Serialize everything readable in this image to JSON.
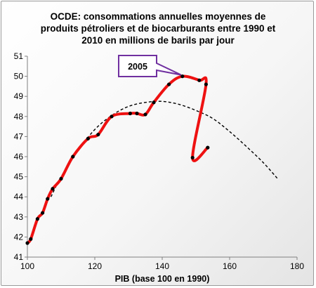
{
  "chart_data": {
    "type": "scatter",
    "title": "OCDE: consommations annuelles moyennes de produits pétroliers et de biocarburants entre 1990 et 2010 en millions de barils par jour",
    "title_lines": [
      "OCDE: consommations annuelles moyennes de",
      "produits pétroliers et de biocarburants entre 1990 et",
      "2010 en millions de barils par jour"
    ],
    "xlabel": "PIB (base 100 en 1990)",
    "ylabel": "",
    "xlim": [
      100,
      180
    ],
    "ylim": [
      41,
      51
    ],
    "x_ticks": [
      100,
      120,
      140,
      160,
      180
    ],
    "y_ticks": [
      41,
      42,
      43,
      44,
      45,
      46,
      47,
      48,
      49,
      50,
      51
    ],
    "grid": false,
    "series": [
      {
        "style": "red line with black markers",
        "color": "#ee1111",
        "points": [
          [
            100.0,
            41.7
          ],
          [
            101.0,
            41.9
          ],
          [
            103.0,
            42.9
          ],
          [
            104.5,
            43.2
          ],
          [
            106.0,
            43.9
          ],
          [
            107.5,
            44.4
          ],
          [
            110.0,
            44.9
          ],
          [
            113.5,
            46.0
          ],
          [
            118.0,
            46.9
          ],
          [
            121.0,
            47.1
          ],
          [
            125.0,
            48.0
          ],
          [
            130.5,
            48.15
          ],
          [
            132.5,
            48.15
          ],
          [
            135.0,
            48.1
          ],
          [
            137.5,
            48.7
          ],
          [
            142.0,
            49.6
          ],
          [
            146.0,
            50.0
          ],
          [
            151.0,
            49.8
          ],
          [
            153.0,
            49.6
          ],
          [
            149.0,
            45.95
          ],
          [
            153.5,
            46.45
          ]
        ]
      },
      {
        "style": "black dashed trend curve",
        "color": "#000000",
        "points": [
          [
            107.0,
            44.0
          ],
          [
            110.0,
            45.0
          ],
          [
            115.0,
            46.3
          ],
          [
            120.0,
            47.35
          ],
          [
            125.0,
            48.05
          ],
          [
            130.0,
            48.5
          ],
          [
            135.0,
            48.7
          ],
          [
            140.0,
            48.75
          ],
          [
            145.0,
            48.6
          ],
          [
            150.0,
            48.3
          ],
          [
            155.0,
            47.9
          ],
          [
            160.0,
            47.25
          ],
          [
            165.0,
            46.5
          ],
          [
            170.0,
            45.7
          ],
          [
            174.5,
            44.85
          ]
        ]
      }
    ],
    "annotations": [
      {
        "text": "2005",
        "target": [
          146.0,
          50.0
        ],
        "color": "#7030a0"
      }
    ]
  }
}
